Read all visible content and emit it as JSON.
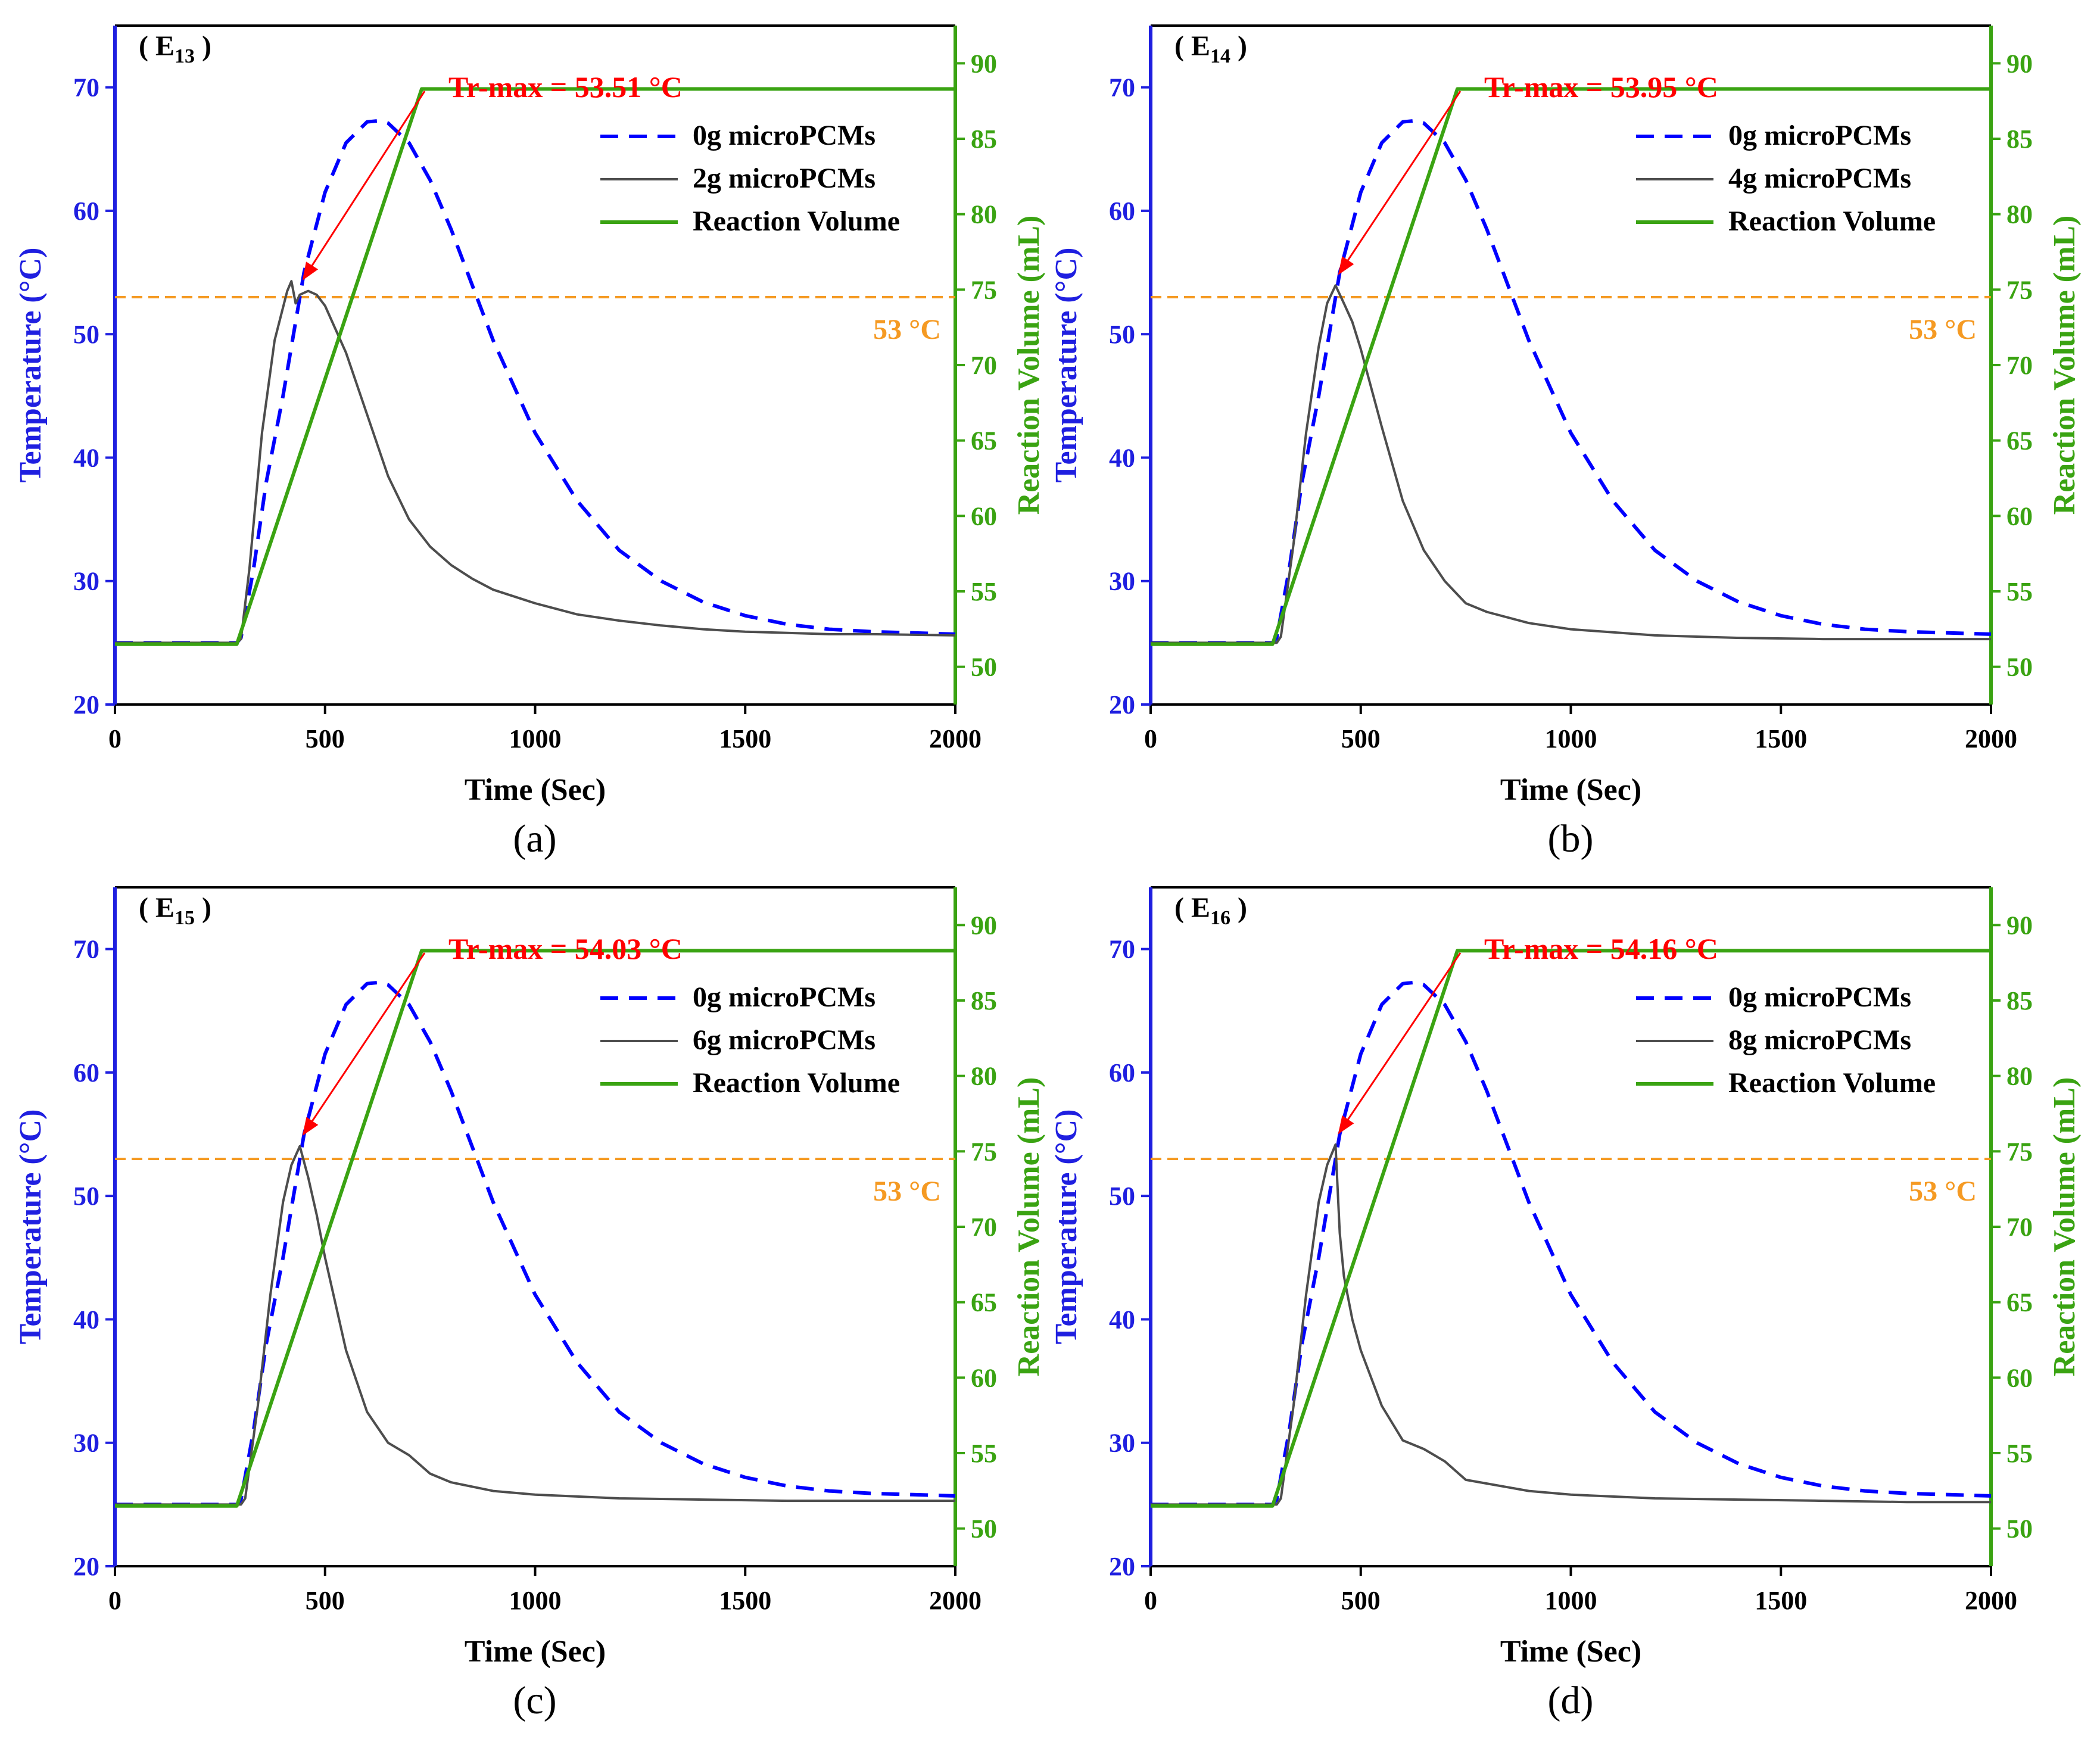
{
  "colors": {
    "left_axis": "#1f1fe0",
    "right_axis": "#3aa312",
    "baseline": "#0000ff",
    "pcm": "#4d4d4d",
    "volume": "#3aa312",
    "threshold": "#f59a23",
    "annotation": "#ff0000"
  },
  "chart_data": [
    {
      "type": "line",
      "panel_label": "(a)",
      "corner_label": {
        "main": "E",
        "sub": "13"
      },
      "xlabel": "Time (Sec)",
      "ylabel_left": "Temperature (°C)",
      "ylabel_right": "Reaction Volume (mL)",
      "xlim": [
        0,
        2000
      ],
      "ylim_left": [
        20,
        75
      ],
      "ylim_right": [
        47.5,
        92.5
      ],
      "xticks": [
        0,
        500,
        1000,
        1500,
        2000
      ],
      "yticks_left": [
        20,
        30,
        40,
        50,
        60,
        70
      ],
      "yticks_right": [
        50,
        55,
        60,
        65,
        70,
        75,
        80,
        85,
        90
      ],
      "legend": [
        "0g microPCMs",
        "2g microPCMs",
        "Reaction Volume"
      ],
      "annotation": {
        "text": "Tr-max = 53.51 °C",
        "target_x": 440,
        "target_y": 53.51
      },
      "threshold": {
        "value": 53,
        "label": "53 °C"
      },
      "series": [
        {
          "name": "0g microPCMs",
          "axis": "left",
          "x": [
            0,
            290,
            300,
            330,
            360,
            400,
            450,
            500,
            550,
            600,
            630,
            650,
            700,
            750,
            800,
            850,
            900,
            1000,
            1100,
            1200,
            1300,
            1400,
            1500,
            1600,
            1700,
            1800,
            1900,
            2000
          ],
          "y": [
            25,
            25,
            25.4,
            31,
            38,
            45,
            55,
            61.5,
            65.5,
            67.2,
            67.3,
            67.1,
            65.5,
            62.5,
            58.5,
            54,
            49.5,
            42,
            36.5,
            32.5,
            30,
            28.3,
            27.2,
            26.5,
            26.1,
            25.9,
            25.8,
            25.7
          ]
        },
        {
          "name": "2g microPCMs",
          "axis": "left",
          "x": [
            0,
            290,
            300,
            320,
            350,
            380,
            410,
            420,
            430,
            440,
            460,
            480,
            500,
            550,
            600,
            650,
            700,
            750,
            800,
            850,
            900,
            1000,
            1100,
            1200,
            1300,
            1400,
            1500,
            1600,
            1700,
            1800,
            2000
          ],
          "y": [
            25,
            25,
            25.3,
            31,
            42,
            49.5,
            53.5,
            54.3,
            52.5,
            53.2,
            53.5,
            53.2,
            52.3,
            48.5,
            43.5,
            38.5,
            35,
            32.8,
            31.3,
            30.2,
            29.3,
            28.2,
            27.3,
            26.8,
            26.4,
            26.1,
            25.9,
            25.8,
            25.7,
            25.7,
            25.6
          ]
        },
        {
          "name": "Reaction Volume",
          "axis": "right",
          "x": [
            0,
            290,
            730,
            2000
          ],
          "y": [
            51.5,
            51.5,
            88.3,
            88.3
          ]
        }
      ]
    },
    {
      "type": "line",
      "panel_label": "(b)",
      "corner_label": {
        "main": "E",
        "sub": "14"
      },
      "xlabel": "Time (Sec)",
      "ylabel_left": "Temperature (°C)",
      "ylabel_right": "Reaction Volume (mL)",
      "xlim": [
        0,
        2000
      ],
      "ylim_left": [
        20,
        75
      ],
      "ylim_right": [
        47.5,
        92.5
      ],
      "xticks": [
        0,
        500,
        1000,
        1500,
        2000
      ],
      "yticks_left": [
        20,
        30,
        40,
        50,
        60,
        70
      ],
      "yticks_right": [
        50,
        55,
        60,
        65,
        70,
        75,
        80,
        85,
        90
      ],
      "legend": [
        "0g microPCMs",
        "4g microPCMs",
        "Reaction Volume"
      ],
      "annotation": {
        "text": "Tr-max = 53.95 °C",
        "target_x": 440,
        "target_y": 53.95
      },
      "threshold": {
        "value": 53,
        "label": "53 °C"
      },
      "series": [
        {
          "name": "0g microPCMs",
          "axis": "left",
          "x": [
            0,
            290,
            300,
            330,
            360,
            400,
            450,
            500,
            550,
            600,
            630,
            650,
            700,
            750,
            800,
            850,
            900,
            1000,
            1100,
            1200,
            1300,
            1400,
            1500,
            1600,
            1700,
            1800,
            1900,
            2000
          ],
          "y": [
            25,
            25,
            25.4,
            31,
            38,
            45,
            55,
            61.5,
            65.5,
            67.2,
            67.3,
            67.1,
            65.5,
            62.5,
            58.5,
            54,
            49.5,
            42,
            36.5,
            32.5,
            30,
            28.3,
            27.2,
            26.5,
            26.1,
            25.9,
            25.8,
            25.7
          ]
        },
        {
          "name": "4g microPCMs",
          "axis": "left",
          "x": [
            0,
            300,
            310,
            340,
            370,
            400,
            420,
            440,
            460,
            480,
            500,
            550,
            600,
            650,
            700,
            750,
            800,
            900,
            1000,
            1200,
            1400,
            1600,
            1800,
            2000
          ],
          "y": [
            25,
            25,
            25.5,
            33,
            42,
            49,
            52.5,
            53.95,
            52.5,
            51,
            48.8,
            42.5,
            36.5,
            32.5,
            30,
            28.2,
            27.5,
            26.6,
            26.1,
            25.6,
            25.4,
            25.3,
            25.3,
            25.3
          ]
        },
        {
          "name": "Reaction Volume",
          "axis": "right",
          "x": [
            0,
            290,
            730,
            2000
          ],
          "y": [
            51.5,
            51.5,
            88.3,
            88.3
          ]
        }
      ]
    },
    {
      "type": "line",
      "panel_label": "(c)",
      "corner_label": {
        "main": "E",
        "sub": "15"
      },
      "xlabel": "Time (Sec)",
      "ylabel_left": "Temperature (°C)",
      "ylabel_right": "Reaction Volume (mL)",
      "xlim": [
        0,
        2000
      ],
      "ylim_left": [
        20,
        75
      ],
      "ylim_right": [
        47.5,
        92.5
      ],
      "xticks": [
        0,
        500,
        1000,
        1500,
        2000
      ],
      "yticks_left": [
        20,
        30,
        40,
        50,
        60,
        70
      ],
      "yticks_right": [
        50,
        55,
        60,
        65,
        70,
        75,
        80,
        85,
        90
      ],
      "legend": [
        "0g microPCMs",
        "6g microPCMs",
        "Reaction Volume"
      ],
      "annotation": {
        "text": "Tr-max = 54.03 °C",
        "target_x": 440,
        "target_y": 54.03
      },
      "threshold": {
        "value": 53,
        "label": "53 °C"
      },
      "series": [
        {
          "name": "0g microPCMs",
          "axis": "left",
          "x": [
            0,
            290,
            300,
            330,
            360,
            400,
            450,
            500,
            550,
            600,
            630,
            650,
            700,
            750,
            800,
            850,
            900,
            1000,
            1100,
            1200,
            1300,
            1400,
            1500,
            1600,
            1700,
            1800,
            1900,
            2000
          ],
          "y": [
            25,
            25,
            25.4,
            31,
            38,
            45,
            55,
            61.5,
            65.5,
            67.2,
            67.3,
            67.1,
            65.5,
            62.5,
            58.5,
            54,
            49.5,
            42,
            36.5,
            32.5,
            30,
            28.3,
            27.2,
            26.5,
            26.1,
            25.9,
            25.8,
            25.7
          ]
        },
        {
          "name": "6g microPCMs",
          "axis": "left",
          "x": [
            0,
            300,
            310,
            340,
            370,
            400,
            420,
            440,
            460,
            480,
            500,
            550,
            600,
            650,
            700,
            750,
            800,
            900,
            1000,
            1200,
            1400,
            1600,
            1800,
            2000
          ],
          "y": [
            25,
            25,
            25.5,
            33,
            42,
            49.5,
            52.5,
            54.03,
            51.5,
            48.5,
            45,
            37.5,
            32.5,
            30,
            29,
            27.5,
            26.8,
            26.1,
            25.8,
            25.5,
            25.4,
            25.3,
            25.3,
            25.3
          ]
        },
        {
          "name": "Reaction Volume",
          "axis": "right",
          "x": [
            0,
            290,
            730,
            2000
          ],
          "y": [
            51.5,
            51.5,
            88.3,
            88.3
          ]
        }
      ]
    },
    {
      "type": "line",
      "panel_label": "(d)",
      "corner_label": {
        "main": "E",
        "sub": "16"
      },
      "xlabel": "Time (Sec)",
      "ylabel_left": "Temperature (°C)",
      "ylabel_right": "Reaction Volume (mL)",
      "xlim": [
        0,
        2000
      ],
      "ylim_left": [
        20,
        75
      ],
      "ylim_right": [
        47.5,
        92.5
      ],
      "xticks": [
        0,
        500,
        1000,
        1500,
        2000
      ],
      "yticks_left": [
        20,
        30,
        40,
        50,
        60,
        70
      ],
      "yticks_right": [
        50,
        55,
        60,
        65,
        70,
        75,
        80,
        85,
        90
      ],
      "legend": [
        "0g microPCMs",
        "8g microPCMs",
        "Reaction Volume"
      ],
      "annotation": {
        "text": "Tr-max = 54.16 °C",
        "target_x": 440,
        "target_y": 54.16
      },
      "threshold": {
        "value": 53,
        "label": "53 °C"
      },
      "series": [
        {
          "name": "0g microPCMs",
          "axis": "left",
          "x": [
            0,
            290,
            300,
            330,
            360,
            400,
            450,
            500,
            550,
            600,
            630,
            650,
            700,
            750,
            800,
            850,
            900,
            1000,
            1100,
            1200,
            1300,
            1400,
            1500,
            1600,
            1700,
            1800,
            1900,
            2000
          ],
          "y": [
            25,
            25,
            25.4,
            31,
            38,
            45,
            55,
            61.5,
            65.5,
            67.2,
            67.3,
            67.1,
            65.5,
            62.5,
            58.5,
            54,
            49.5,
            42,
            36.5,
            32.5,
            30,
            28.3,
            27.2,
            26.5,
            26.1,
            25.9,
            25.8,
            25.7
          ]
        },
        {
          "name": "8g microPCMs",
          "axis": "left",
          "x": [
            0,
            300,
            310,
            340,
            370,
            400,
            420,
            440,
            450,
            460,
            480,
            500,
            550,
            600,
            650,
            700,
            750,
            800,
            900,
            1000,
            1200,
            1400,
            1600,
            1800,
            2000
          ],
          "y": [
            25,
            25,
            25.5,
            33,
            42,
            49.5,
            52.5,
            54.16,
            47,
            43.5,
            40,
            37.5,
            33,
            30.2,
            29.5,
            28.5,
            27,
            26.7,
            26.1,
            25.8,
            25.5,
            25.4,
            25.3,
            25.2,
            25.2
          ]
        },
        {
          "name": "Reaction Volume",
          "axis": "right",
          "x": [
            0,
            290,
            730,
            2000
          ],
          "y": [
            51.5,
            51.5,
            88.3,
            88.3
          ]
        }
      ]
    }
  ]
}
